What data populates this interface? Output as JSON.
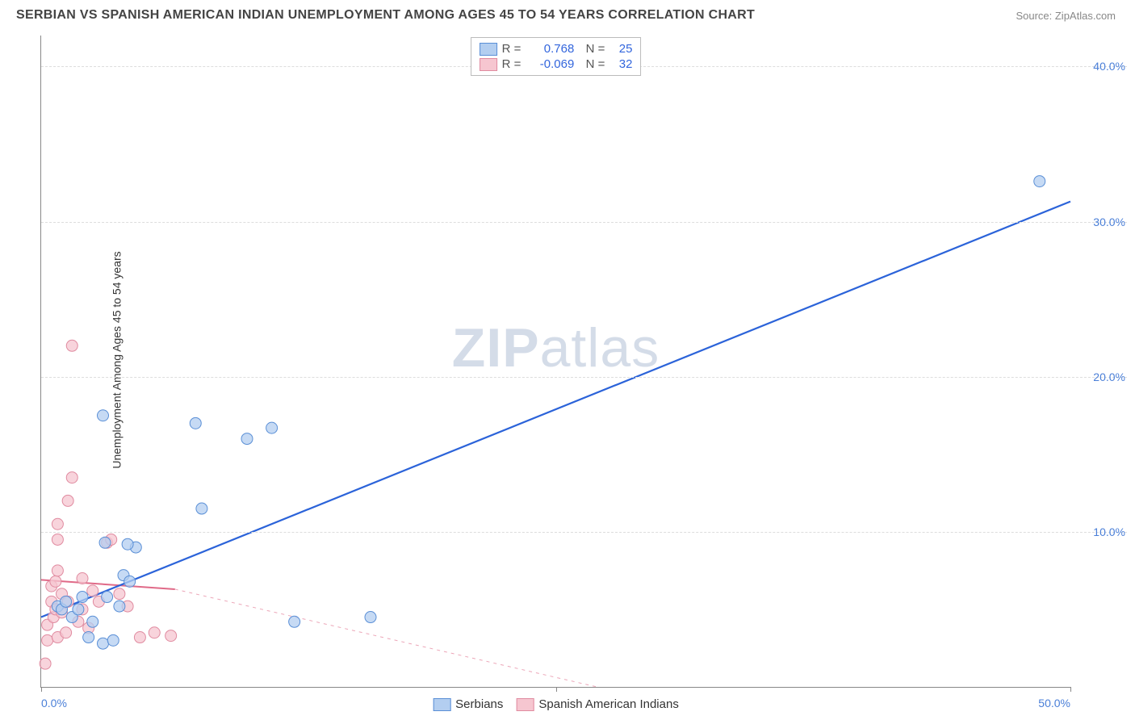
{
  "header": {
    "title": "SERBIAN VS SPANISH AMERICAN INDIAN UNEMPLOYMENT AMONG AGES 45 TO 54 YEARS CORRELATION CHART",
    "source": "Source: ZipAtlas.com"
  },
  "chart": {
    "type": "scatter",
    "ylabel": "Unemployment Among Ages 45 to 54 years",
    "watermark": "ZIPatlas",
    "xlim": [
      0,
      50
    ],
    "ylim": [
      0,
      42
    ],
    "xticks": [
      0,
      25,
      50
    ],
    "xtick_labels": [
      "0.0%",
      "",
      "50.0%"
    ],
    "yticks": [
      10,
      20,
      30,
      40
    ],
    "ytick_labels": [
      "10.0%",
      "20.0%",
      "30.0%",
      "40.0%"
    ],
    "gridline_color": "#dddddd",
    "axis_color": "#888888",
    "background_color": "#ffffff",
    "series": [
      {
        "name": "Serbians",
        "marker_fill": "#b3cef0",
        "marker_stroke": "#5a8fd6",
        "marker_opacity": 0.75,
        "marker_radius": 7,
        "line_color": "#2b63d9",
        "line_width": 2.2,
        "line_dash": "none",
        "r": "0.768",
        "n": "25",
        "trend": {
          "x1": 0,
          "y1": 4.5,
          "x2": 50,
          "y2": 31.3
        },
        "points": [
          [
            0.8,
            5.2
          ],
          [
            1.0,
            5.0
          ],
          [
            1.2,
            5.5
          ],
          [
            1.5,
            4.5
          ],
          [
            1.8,
            5.0
          ],
          [
            2.0,
            5.8
          ],
          [
            2.3,
            3.2
          ],
          [
            2.5,
            4.2
          ],
          [
            3.0,
            2.8
          ],
          [
            3.2,
            5.8
          ],
          [
            3.5,
            3.0
          ],
          [
            3.8,
            5.2
          ],
          [
            4.0,
            7.2
          ],
          [
            4.3,
            6.8
          ],
          [
            4.6,
            9.0
          ],
          [
            3.0,
            17.5
          ],
          [
            3.1,
            9.3
          ],
          [
            4.2,
            9.2
          ],
          [
            7.5,
            17.0
          ],
          [
            7.8,
            11.5
          ],
          [
            10.0,
            16.0
          ],
          [
            11.2,
            16.7
          ],
          [
            12.3,
            4.2
          ],
          [
            16.0,
            4.5
          ],
          [
            48.5,
            32.6
          ]
        ]
      },
      {
        "name": "Spanish American Indians",
        "marker_fill": "#f6c6d0",
        "marker_stroke": "#e08ba0",
        "marker_opacity": 0.75,
        "marker_radius": 7,
        "line_color": "#e06a88",
        "line_width": 2.0,
        "line_dash": "solid_then_dashed",
        "r": "-0.069",
        "n": "32",
        "trend_solid": {
          "x1": 0,
          "y1": 6.9,
          "x2": 6.5,
          "y2": 6.3
        },
        "trend_dash": {
          "x1": 6.5,
          "y1": 6.3,
          "x2": 27,
          "y2": 0.0
        },
        "points": [
          [
            0.2,
            1.5
          ],
          [
            0.3,
            3.0
          ],
          [
            0.3,
            4.0
          ],
          [
            0.5,
            5.5
          ],
          [
            0.5,
            6.5
          ],
          [
            0.6,
            4.5
          ],
          [
            0.7,
            5.0
          ],
          [
            0.7,
            6.8
          ],
          [
            0.8,
            3.2
          ],
          [
            0.8,
            7.5
          ],
          [
            0.8,
            9.5
          ],
          [
            0.8,
            10.5
          ],
          [
            1.0,
            4.8
          ],
          [
            1.0,
            6.0
          ],
          [
            1.2,
            3.5
          ],
          [
            1.3,
            12.0
          ],
          [
            1.3,
            5.5
          ],
          [
            1.5,
            13.5
          ],
          [
            1.5,
            22.0
          ],
          [
            1.8,
            4.2
          ],
          [
            2.0,
            5.0
          ],
          [
            2.0,
            7.0
          ],
          [
            2.3,
            3.8
          ],
          [
            2.5,
            6.2
          ],
          [
            2.8,
            5.5
          ],
          [
            3.2,
            9.3
          ],
          [
            3.4,
            9.5
          ],
          [
            3.8,
            6.0
          ],
          [
            4.2,
            5.2
          ],
          [
            4.8,
            3.2
          ],
          [
            5.5,
            3.5
          ],
          [
            6.3,
            3.3
          ]
        ]
      }
    ]
  }
}
